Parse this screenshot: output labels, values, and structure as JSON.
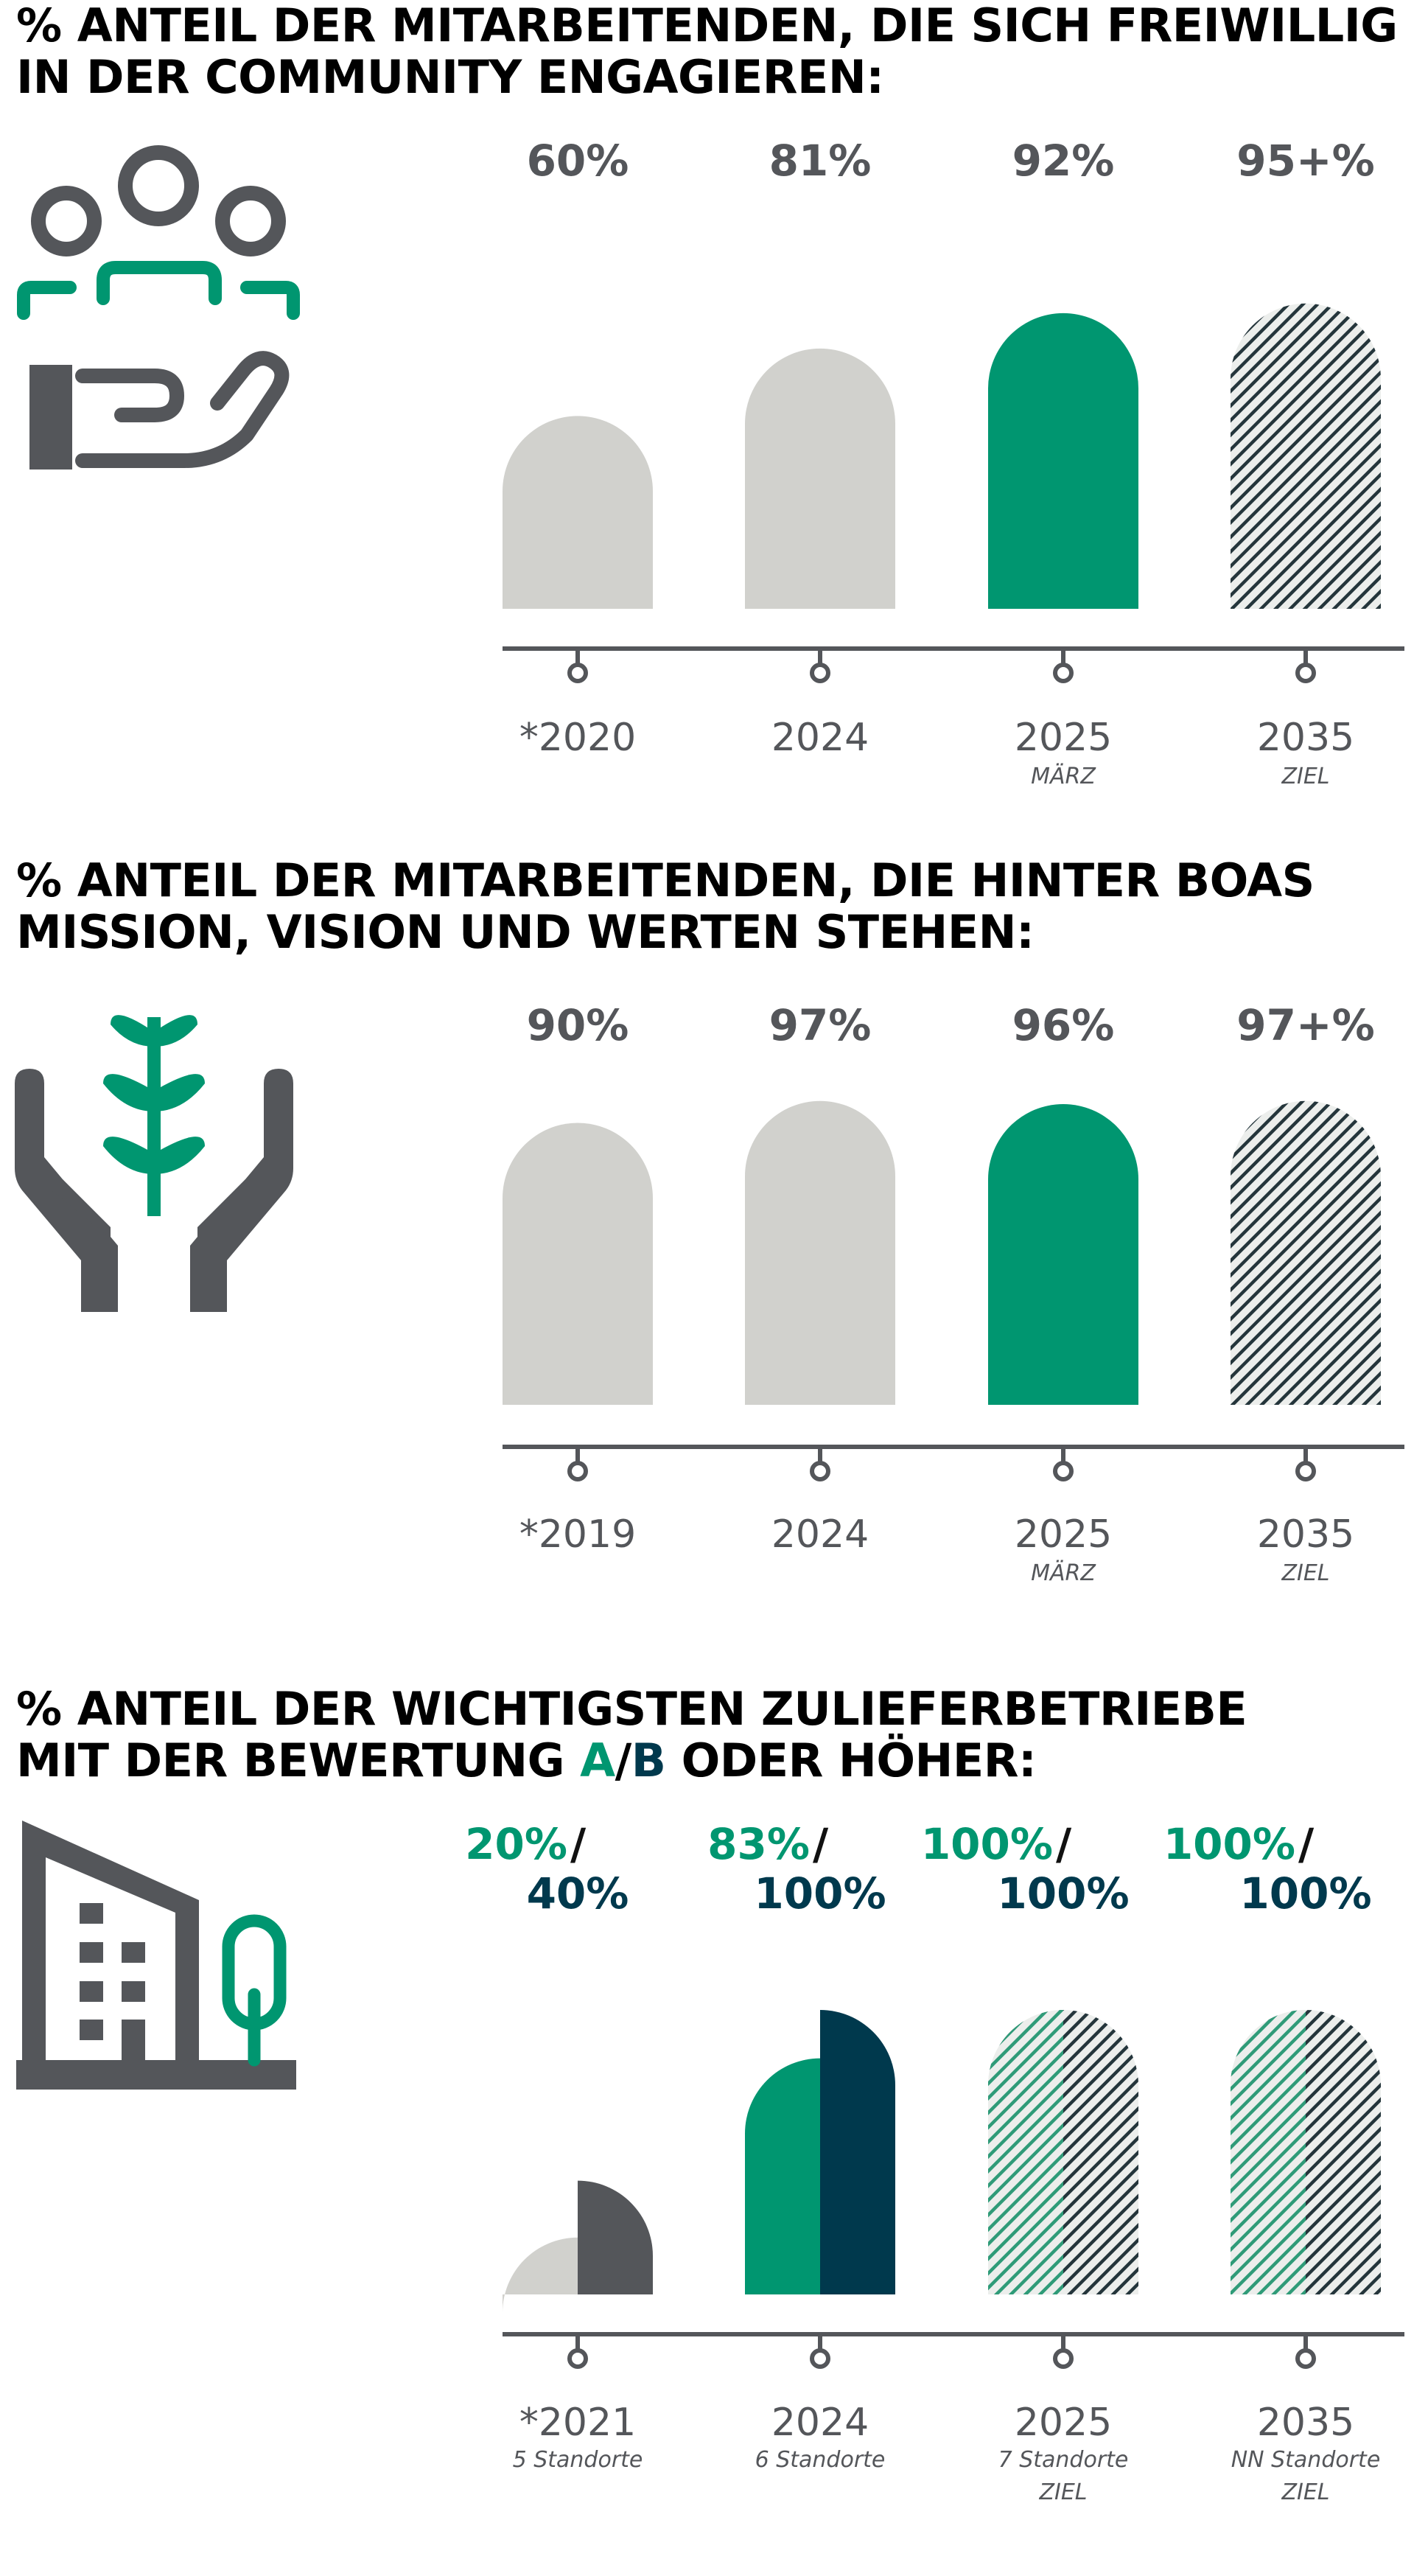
{
  "colors": {
    "past": "#d1d1cd",
    "current": "#009670",
    "navy": "#00394d",
    "gray": "#54565a",
    "axis": "#54565a",
    "text_gray": "#54565a"
  },
  "chart_data": [
    {
      "type": "bar",
      "title": "% ANTEIL DER MITARBEITENDEN, DIE SICH FREIWILLIG IN DER COMMUNITY ENGAGIEREN:",
      "title_lines": [
        "% ANTEIL DER MITARBEITENDEN, DIE SICH FREIWILLIG",
        "IN DER COMMUNITY ENGAGIEREN:"
      ],
      "categories": [
        "*2020",
        "2024",
        "2025",
        "2035"
      ],
      "sublabels": [
        "",
        "",
        "MÄRZ",
        "ZIEL"
      ],
      "value_labels": [
        "60%",
        "81%",
        "92%",
        "95+%"
      ],
      "values": [
        60,
        81,
        92,
        95
      ],
      "styles": [
        "past",
        "past",
        "current",
        "target"
      ],
      "ylim": [
        0,
        100
      ]
    },
    {
      "type": "bar",
      "title": "% ANTEIL DER MITARBEITENDEN, DIE HINTER BOAS MISSION, VISION UND WERTEN STEHEN:",
      "title_lines": [
        "% ANTEIL DER MITARBEITENDEN, DIE HINTER BOAS",
        "MISSION, VISION UND WERTEN STEHEN:"
      ],
      "categories": [
        "*2019",
        "2024",
        "2025",
        "2035"
      ],
      "sublabels": [
        "",
        "",
        "MÄRZ",
        "ZIEL"
      ],
      "value_labels": [
        "90%",
        "97%",
        "96%",
        "97+%"
      ],
      "values": [
        90,
        97,
        96,
        97
      ],
      "styles": [
        "past",
        "past",
        "current",
        "target"
      ],
      "ylim": [
        0,
        100
      ]
    },
    {
      "type": "bar",
      "title": "% ANTEIL DER WICHTIGSTEN ZULIEFERBETRIEBE MIT DER BEWERTUNG A/B ODER HÖHER:",
      "title_line1": "% ANTEIL DER WICHTIGSTEN ZULIEFERBETRIEBE",
      "title_line2_pre": "MIT DER BEWERTUNG ",
      "title_line2_a": "A",
      "title_line2_slash": "/",
      "title_line2_b": "B",
      "title_line2_post": " ODER HÖHER:",
      "categories": [
        "*2021",
        "2024",
        "2025",
        "2035"
      ],
      "sublabels": [
        "5 Standorte",
        "6 Standorte",
        "7 Standorte",
        "NN Standorte"
      ],
      "sublabels2": [
        "",
        "",
        "ZIEL",
        "ZIEL"
      ],
      "series": [
        {
          "name": "A",
          "values": [
            20,
            83,
            100,
            100
          ],
          "value_labels": [
            "20%",
            "83%",
            "100%",
            "100%"
          ]
        },
        {
          "name": "B",
          "values": [
            40,
            100,
            100,
            100
          ],
          "value_labels": [
            "40%",
            "100%",
            "100%",
            "100%"
          ]
        }
      ],
      "label_separator": "/",
      "styles": [
        "past",
        "current",
        "target",
        "target"
      ],
      "ylim": [
        0,
        100
      ]
    }
  ]
}
